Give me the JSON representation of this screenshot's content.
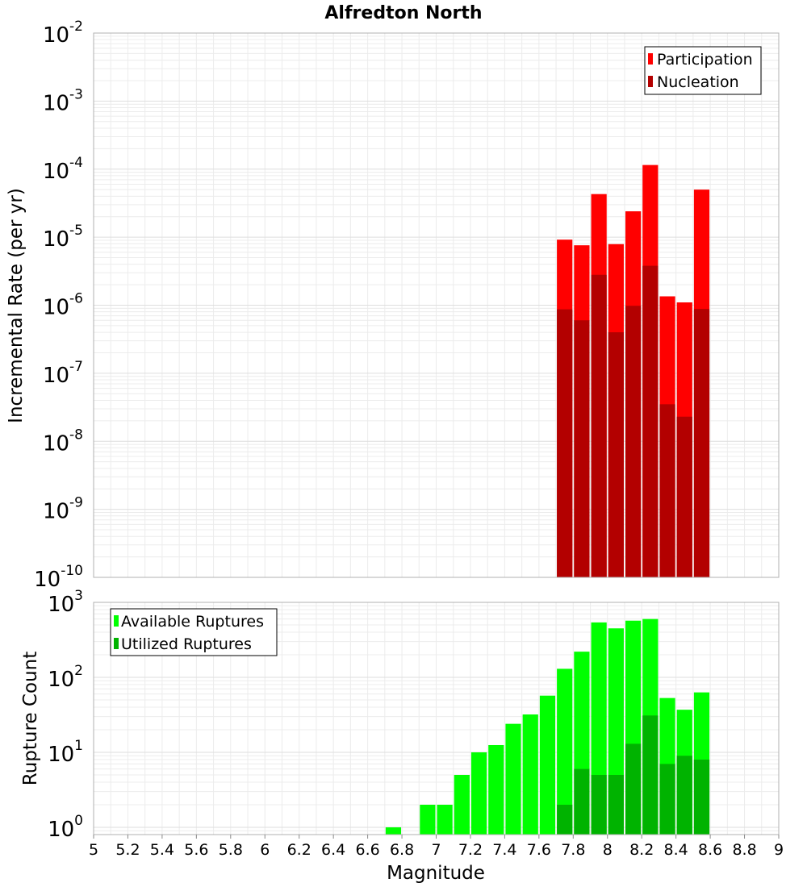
{
  "chart_data": [
    {
      "type": "bar",
      "title": "Alfredton North",
      "ylabel": "Incremental Rate (per yr)",
      "yscale": "log",
      "ylim": [
        1e-10,
        0.01
      ],
      "y_ticks": [
        {
          "base": "10",
          "exp": "-10"
        },
        {
          "base": "10",
          "exp": "-9"
        },
        {
          "base": "10",
          "exp": "-8"
        },
        {
          "base": "10",
          "exp": "-7"
        },
        {
          "base": "10",
          "exp": "-6"
        },
        {
          "base": "10",
          "exp": "-5"
        },
        {
          "base": "10",
          "exp": "-4"
        },
        {
          "base": "10",
          "exp": "-3"
        },
        {
          "base": "10",
          "exp": "-2"
        }
      ],
      "grid": true,
      "legend_position": "top-right",
      "x": [
        7.75,
        7.85,
        7.95,
        8.05,
        8.15,
        8.25,
        8.35,
        8.45,
        8.55
      ],
      "series": [
        {
          "name": "Participation",
          "color": "#ff0000",
          "values": [
            9.2e-06,
            7.6e-06,
            4.3e-05,
            7.9e-06,
            2.4e-05,
            0.000115,
            1.35e-06,
            1.1e-06,
            5e-05
          ]
        },
        {
          "name": "Nucleation",
          "color": "#b30000",
          "values": [
            8.7e-07,
            6e-07,
            2.8e-06,
            4e-07,
            9.8e-07,
            3.8e-06,
            3.5e-08,
            2.3e-08,
            8.8e-07
          ]
        }
      ]
    },
    {
      "type": "bar",
      "xlabel": "Magnitude",
      "ylabel": "Rupture Count",
      "yscale": "log",
      "ylim": [
        0.8,
        1000
      ],
      "xlim": [
        5,
        9
      ],
      "y_ticks": [
        {
          "base": "10",
          "exp": "0"
        },
        {
          "base": "10",
          "exp": "1"
        },
        {
          "base": "10",
          "exp": "2"
        },
        {
          "base": "10",
          "exp": "3"
        }
      ],
      "x_ticks": [
        "5",
        "5.2",
        "5.4",
        "5.6",
        "5.8",
        "6",
        "6.2",
        "6.4",
        "6.6",
        "6.8",
        "7",
        "7.2",
        "7.4",
        "7.6",
        "7.8",
        "8",
        "8.2",
        "8.4",
        "8.6",
        "8.8",
        "9"
      ],
      "grid": true,
      "legend_position": "top-left",
      "x": [
        6.75,
        6.95,
        7.05,
        7.15,
        7.25,
        7.35,
        7.45,
        7.55,
        7.65,
        7.75,
        7.85,
        7.95,
        8.05,
        8.15,
        8.25,
        8.35,
        8.45,
        8.55
      ],
      "series": [
        {
          "name": "Available Ruptures",
          "color": "#00ff00",
          "values": [
            1,
            2,
            2,
            5,
            10,
            12.5,
            24,
            32,
            57,
            130,
            220,
            540,
            450,
            570,
            600,
            53,
            37,
            63
          ]
        },
        {
          "name": "Utilized Ruptures",
          "color": "#00b300",
          "values": [
            0,
            0,
            0,
            0,
            0,
            0,
            0,
            0,
            0,
            2,
            6,
            5,
            5,
            13,
            31,
            7,
            9,
            8
          ]
        }
      ]
    }
  ]
}
